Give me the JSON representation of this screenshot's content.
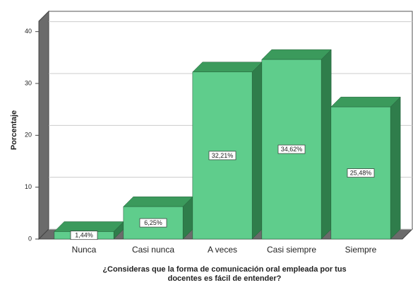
{
  "chart_data": {
    "type": "bar3d",
    "y_label": "Porcentaje",
    "x_label": [
      "¿Consideras que la forma de comunicación oral empleada por tus",
      "docentes es fácil de entender?"
    ],
    "categories": [
      "Nunca",
      "Casi nunca",
      "A veces",
      "Casi siempre",
      "Siempre"
    ],
    "values": [
      1.44,
      6.25,
      32.21,
      34.62,
      25.48
    ],
    "value_labels": [
      "1,44%",
      "6,25%",
      "32,21%",
      "34,62%",
      "25,48%"
    ],
    "color": "#5fcd8c",
    "ylim": [
      0,
      42
    ],
    "yticks": [
      0,
      10,
      20,
      30,
      40
    ],
    "grid": true
  }
}
